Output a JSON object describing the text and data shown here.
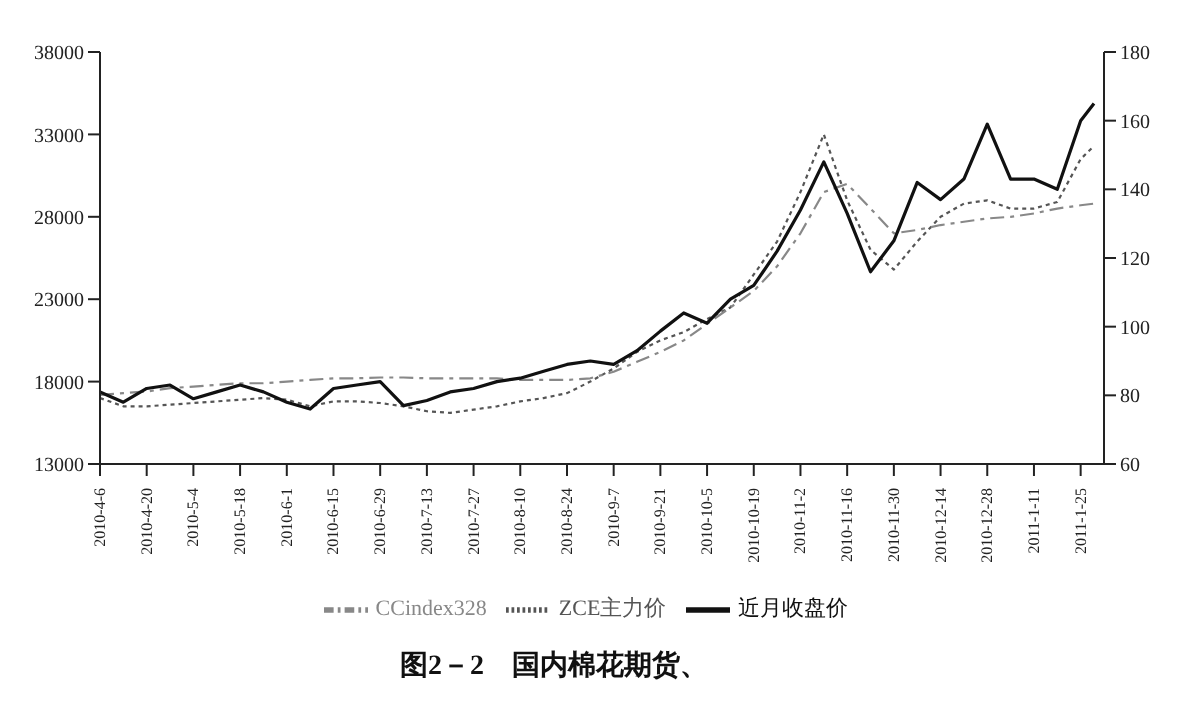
{
  "chart_data": {
    "type": "line",
    "title": "图2－2　国内棉花期货、",
    "x": [
      "2010-04-06",
      "2010-04-13",
      "2010-04-20",
      "2010-04-27",
      "2010-05-04",
      "2010-05-11",
      "2010-05-18",
      "2010-05-25",
      "2010-06-01",
      "2010-06-08",
      "2010-06-15",
      "2010-06-22",
      "2010-06-29",
      "2010-07-06",
      "2010-07-13",
      "2010-07-20",
      "2010-07-27",
      "2010-08-03",
      "2010-08-10",
      "2010-08-17",
      "2010-08-24",
      "2010-08-31",
      "2010-09-07",
      "2010-09-14",
      "2010-09-21",
      "2010-09-28",
      "2010-10-05",
      "2010-10-12",
      "2010-10-19",
      "2010-10-26",
      "2010-11-02",
      "2010-11-09",
      "2010-11-16",
      "2010-11-23",
      "2010-11-30",
      "2010-12-07",
      "2010-12-14",
      "2010-12-21",
      "2010-12-28",
      "2011-01-04",
      "2011-01-11",
      "2011-01-18",
      "2011-01-25",
      "2011-01-29"
    ],
    "series": [
      {
        "name": "ZCE主力价",
        "color": "#555555",
        "line_style": "dotted",
        "axis": "y",
        "values": [
          17000,
          16500,
          16500,
          16600,
          16700,
          16800,
          16900,
          17000,
          16900,
          16500,
          16800,
          16800,
          16700,
          16500,
          16200,
          16100,
          16300,
          16500,
          16800,
          17000,
          17300,
          18000,
          18800,
          19800,
          20500,
          21000,
          21800,
          22500,
          24500,
          26500,
          29500,
          33000,
          29000,
          26000,
          24800,
          26500,
          28000,
          28800,
          29000,
          28500,
          28500,
          28900,
          31500,
          32300
        ]
      },
      {
        "name": "CCindex328",
        "color": "#888888",
        "line_style": "dashed",
        "axis": "y",
        "values": [
          17200,
          17300,
          17400,
          17600,
          17700,
          17800,
          17900,
          17900,
          18000,
          18100,
          18200,
          18200,
          18250,
          18250,
          18200,
          18200,
          18200,
          18200,
          18100,
          18100,
          18100,
          18200,
          18600,
          19200,
          19800,
          20500,
          21500,
          22500,
          23500,
          25000,
          27000,
          29500,
          30000,
          28500,
          27000,
          27200,
          27500,
          27700,
          27900,
          28000,
          28200,
          28500,
          28700,
          28800
        ]
      },
      {
        "name": "近月收盘价",
        "color": "#111111",
        "line_style": "solid",
        "axis": "y2",
        "values": [
          81,
          78,
          82,
          83,
          79,
          81,
          83,
          81,
          78,
          76,
          82,
          83,
          84,
          77,
          78.5,
          81,
          82,
          84,
          85,
          87,
          89,
          90,
          89,
          93,
          98.7,
          104,
          101,
          108,
          112,
          122,
          134,
          148,
          133,
          116,
          125,
          142,
          137,
          143,
          159,
          143,
          143,
          140,
          160,
          165
        ]
      }
    ],
    "xlim": [
      "2010-04-06",
      "2011-02-01"
    ],
    "xticks": [
      {
        "value": "2010-04-06",
        "label": "2010-4-6"
      },
      {
        "value": "2010-04-20",
        "label": "2010-4-20"
      },
      {
        "value": "2010-05-04",
        "label": "2010-5-4"
      },
      {
        "value": "2010-05-18",
        "label": "2010-5-18"
      },
      {
        "value": "2010-06-01",
        "label": "2010-6-1"
      },
      {
        "value": "2010-06-15",
        "label": "2010-6-15"
      },
      {
        "value": "2010-06-29",
        "label": "2010-6-29"
      },
      {
        "value": "2010-07-13",
        "label": "2010-7-13"
      },
      {
        "value": "2010-07-27",
        "label": "2010-7-27"
      },
      {
        "value": "2010-08-10",
        "label": "2010-8-10"
      },
      {
        "value": "2010-08-24",
        "label": "2010-8-24"
      },
      {
        "value": "2010-09-07",
        "label": "2010-9-7"
      },
      {
        "value": "2010-09-21",
        "label": "2010-9-21"
      },
      {
        "value": "2010-10-05",
        "label": "2010-10-5"
      },
      {
        "value": "2010-10-19",
        "label": "2010-10-19"
      },
      {
        "value": "2010-11-02",
        "label": "2010-11-2"
      },
      {
        "value": "2010-11-16",
        "label": "2010-11-16"
      },
      {
        "value": "2010-11-30",
        "label": "2010-11-30"
      },
      {
        "value": "2010-12-14",
        "label": "2010-12-14"
      },
      {
        "value": "2010-12-28",
        "label": "2010-12-28"
      },
      {
        "value": "2011-01-11",
        "label": "2011-1-11"
      },
      {
        "value": "2011-01-25",
        "label": "2011-1-25"
      }
    ],
    "ylim": [
      13000,
      38000
    ],
    "yticks": [
      13000,
      18000,
      23000,
      28000,
      33000,
      38000
    ],
    "y2lim": [
      60,
      180
    ],
    "y2ticks": [
      60,
      80,
      100,
      120,
      140,
      160,
      180
    ],
    "legend": "bottom"
  }
}
